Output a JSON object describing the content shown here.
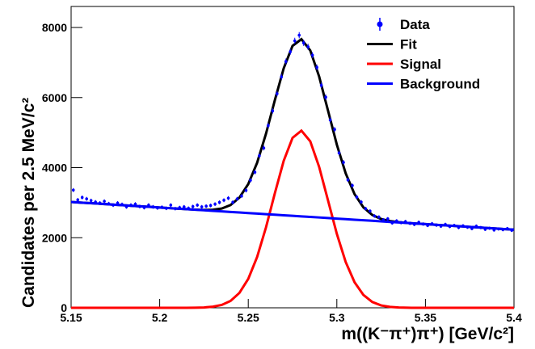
{
  "chart_data": {
    "type": "line",
    "x_label": "m((K⁻π⁺)π⁺) [GeV/c²]",
    "y_label": "Candidates per 2.5 MeV/c²",
    "xlim": [
      5.15,
      5.4
    ],
    "ylim": [
      0,
      8600
    ],
    "xticks": [
      5.15,
      5.2,
      5.25,
      5.3,
      5.35,
      5.4
    ],
    "yticks": [
      0,
      2000,
      4000,
      6000,
      8000
    ],
    "legend": "upper-right",
    "x": [
      5.15,
      5.155,
      5.16,
      5.165,
      5.17,
      5.175,
      5.18,
      5.185,
      5.19,
      5.195,
      5.2,
      5.205,
      5.21,
      5.215,
      5.22,
      5.225,
      5.23,
      5.235,
      5.24,
      5.245,
      5.25,
      5.255,
      5.26,
      5.265,
      5.27,
      5.275,
      5.28,
      5.285,
      5.29,
      5.295,
      5.3,
      5.305,
      5.31,
      5.315,
      5.32,
      5.325,
      5.33,
      5.335,
      5.34,
      5.345,
      5.35,
      5.355,
      5.36,
      5.365,
      5.37,
      5.375,
      5.38,
      5.385,
      5.39,
      5.395,
      5.4
    ],
    "series": [
      {
        "name": "Data",
        "type": "errorbar",
        "color": "#0000ff",
        "x": [
          5.15125,
          5.15375,
          5.15625,
          5.15875,
          5.16125,
          5.16375,
          5.16625,
          5.16875,
          5.17125,
          5.17375,
          5.17625,
          5.17875,
          5.18125,
          5.18375,
          5.18625,
          5.18875,
          5.19125,
          5.19375,
          5.19625,
          5.19875,
          5.20125,
          5.20375,
          5.20625,
          5.20875,
          5.21125,
          5.21375,
          5.21625,
          5.21875,
          5.22125,
          5.22375,
          5.22625,
          5.22875,
          5.23125,
          5.23375,
          5.23625,
          5.23875,
          5.24125,
          5.24375,
          5.24625,
          5.24875,
          5.25125,
          5.25375,
          5.25625,
          5.25875,
          5.26125,
          5.26375,
          5.26625,
          5.26875,
          5.27125,
          5.27375,
          5.27625,
          5.27875,
          5.28125,
          5.28375,
          5.28625,
          5.28875,
          5.29125,
          5.29375,
          5.29625,
          5.29875,
          5.30125,
          5.30375,
          5.30625,
          5.30875,
          5.31125,
          5.31375,
          5.31625,
          5.31875,
          5.32125,
          5.32375,
          5.32625,
          5.32875,
          5.33125,
          5.33375,
          5.33625,
          5.33875,
          5.34125,
          5.34375,
          5.34625,
          5.34875,
          5.35125,
          5.35375,
          5.35625,
          5.35875,
          5.36125,
          5.36375,
          5.36625,
          5.36875,
          5.37125,
          5.37375,
          5.37625,
          5.37875,
          5.38125,
          5.38375,
          5.38625,
          5.38875,
          5.39125,
          5.39375,
          5.39625,
          5.39875
        ],
        "values": [
          3360,
          3080,
          3150,
          3110,
          3060,
          3020,
          2990,
          3040,
          2970,
          2930,
          2990,
          2950,
          2880,
          2930,
          2960,
          2890,
          2860,
          2930,
          2880,
          2850,
          2870,
          2840,
          2930,
          2830,
          2860,
          2880,
          2840,
          2890,
          2930,
          2880,
          2900,
          2920,
          2960,
          3010,
          3070,
          3130,
          3010,
          3110,
          3190,
          3350,
          3640,
          3870,
          4340,
          4560,
          5200,
          5620,
          6110,
          6590,
          7030,
          7310,
          7620,
          7780,
          7560,
          7450,
          7210,
          6860,
          6350,
          6010,
          5360,
          5090,
          4420,
          4150,
          3650,
          3490,
          3160,
          3020,
          2830,
          2760,
          2620,
          2590,
          2510,
          2540,
          2420,
          2480,
          2430,
          2460,
          2410,
          2380,
          2440,
          2390,
          2350,
          2400,
          2360,
          2330,
          2380,
          2320,
          2350,
          2290,
          2340,
          2300,
          2260,
          2330,
          2290,
          2240,
          2270,
          2220,
          2250,
          2230,
          2260,
          2210
        ],
        "errors": [
          58,
          55,
          56,
          56,
          55,
          55,
          55,
          55,
          54,
          54,
          55,
          54,
          54,
          54,
          54,
          54,
          53,
          54,
          54,
          53,
          54,
          53,
          54,
          53,
          53,
          54,
          53,
          54,
          54,
          54,
          54,
          54,
          54,
          55,
          55,
          56,
          55,
          56,
          56,
          58,
          60,
          62,
          66,
          68,
          72,
          75,
          78,
          81,
          84,
          85,
          87,
          88,
          87,
          86,
          85,
          83,
          80,
          78,
          73,
          71,
          66,
          64,
          60,
          59,
          56,
          55,
          53,
          53,
          51,
          51,
          50,
          50,
          49,
          50,
          49,
          50,
          49,
          49,
          49,
          49,
          48,
          49,
          49,
          48,
          49,
          48,
          48,
          48,
          48,
          48,
          48,
          48,
          48,
          47,
          48,
          47,
          47,
          47,
          48,
          47
        ]
      },
      {
        "name": "Fit",
        "type": "line",
        "color": "#000000",
        "values": [
          3020,
          3004,
          2988,
          2973,
          2957,
          2941,
          2925,
          2909,
          2893,
          2878,
          2862,
          2846,
          2830,
          2816,
          2802,
          2793,
          2798,
          2833,
          2933,
          3145,
          3531,
          4139,
          4966,
          5924,
          6835,
          7476,
          7666,
          7345,
          6601,
          5631,
          4656,
          3837,
          3244,
          2866,
          2650,
          2535,
          2476,
          2444,
          2422,
          2404,
          2388,
          2372,
          2356,
          2341,
          2325,
          2309,
          2293,
          2278,
          2262,
          2246,
          2230
        ]
      },
      {
        "name": "Signal",
        "type": "line",
        "color": "#ff0000",
        "values": [
          0,
          0,
          0,
          0,
          0,
          0,
          0,
          0,
          0,
          0,
          0,
          0,
          0,
          1,
          3,
          10,
          31,
          82,
          197,
          425,
          827,
          1451,
          2294,
          3267,
          4194,
          4851,
          5057,
          4751,
          4023,
          3069,
          2110,
          1307,
          730,
          367,
          167,
          68,
          25,
          8,
          2,
          0,
          0,
          0,
          0,
          0,
          0,
          0,
          0,
          0,
          0,
          0,
          0
        ]
      },
      {
        "name": "Background",
        "type": "line",
        "color": "#0000ff",
        "values": [
          3020,
          3004,
          2988,
          2973,
          2957,
          2941,
          2925,
          2909,
          2893,
          2878,
          2862,
          2846,
          2830,
          2815,
          2799,
          2783,
          2767,
          2751,
          2736,
          2720,
          2704,
          2688,
          2672,
          2657,
          2641,
          2625,
          2609,
          2594,
          2578,
          2562,
          2546,
          2530,
          2514,
          2499,
          2483,
          2467,
          2451,
          2436,
          2420,
          2404,
          2388,
          2372,
          2356,
          2341,
          2325,
          2309,
          2293,
          2278,
          2262,
          2246,
          2230
        ]
      }
    ]
  }
}
